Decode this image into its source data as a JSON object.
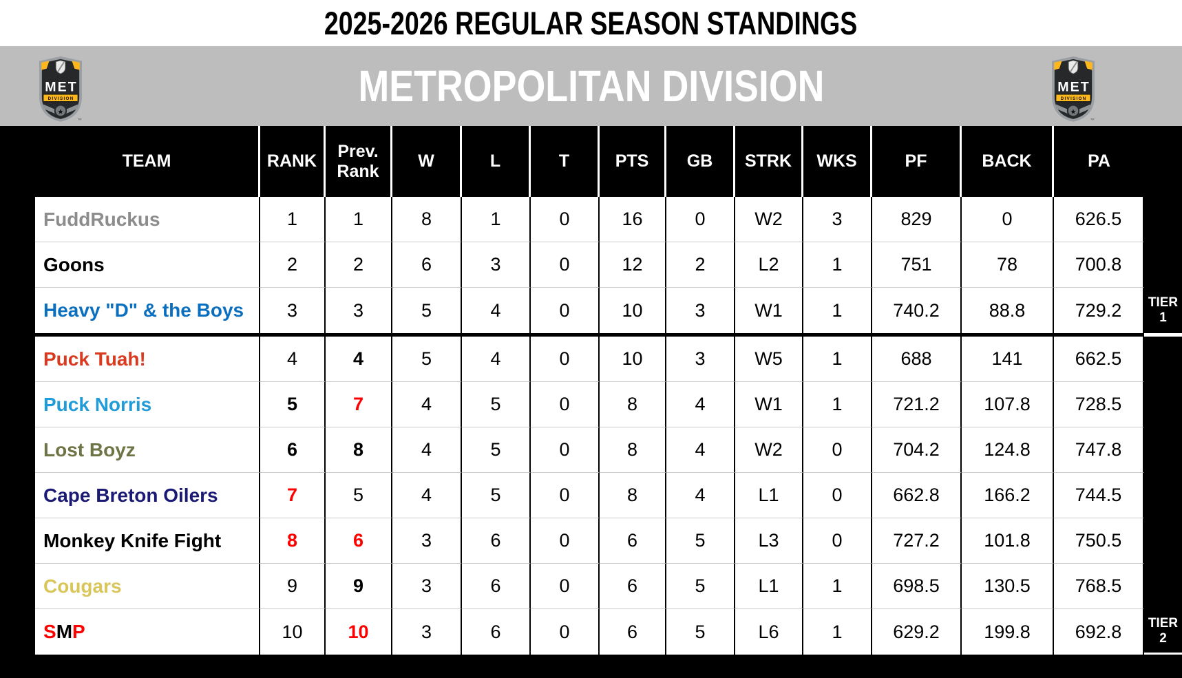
{
  "title": "2025-2026 REGULAR SEASON STANDINGS",
  "division": {
    "name": "METROPOLITAN DIVISION",
    "logo": {
      "abbr": "MET",
      "banner": "DIVISION",
      "star": "★",
      "tm": "™"
    }
  },
  "columns": {
    "team": "TEAM",
    "rank": "RANK",
    "prev1": "Prev.",
    "prev2": "Rank",
    "w": "W",
    "l": "L",
    "t": "T",
    "pts": "PTS",
    "gb": "GB",
    "strk": "STRK",
    "wks": "WKS",
    "pf": "PF",
    "back": "BACK",
    "pa": "PA"
  },
  "tier_labels": [
    {
      "line1": "TIER",
      "line2": "1"
    },
    {
      "line1": "TIER",
      "line2": "2"
    }
  ],
  "colors": {
    "band_gray": "#BDBDBD",
    "red_accent": "#FF0000",
    "logo_gold": "#FFB81C"
  },
  "teams": [
    {
      "name": "FuddRuckus",
      "color": "#8C8C8C",
      "rank": {
        "v": "1",
        "color": "#000000",
        "bold": false
      },
      "prev": {
        "v": "1",
        "color": "#000000",
        "bold": false
      },
      "w": "8",
      "l": "1",
      "t": "0",
      "pts": "16",
      "gb": "0",
      "strk": "W2",
      "wks": "3",
      "pf": "829",
      "back": "0",
      "pa": "626.5"
    },
    {
      "name": "Goons",
      "color": "#000000",
      "rank": {
        "v": "2",
        "color": "#000000",
        "bold": false
      },
      "prev": {
        "v": "2",
        "color": "#000000",
        "bold": false
      },
      "w": "6",
      "l": "3",
      "t": "0",
      "pts": "12",
      "gb": "2",
      "strk": "L2",
      "wks": "1",
      "pf": "751",
      "back": "78",
      "pa": "700.8"
    },
    {
      "name": "Heavy \"D\" & the Boys",
      "color": "#0B6FC0",
      "rank": {
        "v": "3",
        "color": "#000000",
        "bold": false
      },
      "prev": {
        "v": "3",
        "color": "#000000",
        "bold": false
      },
      "w": "5",
      "l": "4",
      "t": "0",
      "pts": "10",
      "gb": "3",
      "strk": "W1",
      "wks": "1",
      "pf": "740.2",
      "back": "88.8",
      "pa": "729.2"
    },
    {
      "name": "Puck Tuah!",
      "color": "#D8391F",
      "rank": {
        "v": "4",
        "color": "#000000",
        "bold": false
      },
      "prev": {
        "v": "4",
        "color": "#000000",
        "bold": true
      },
      "w": "5",
      "l": "4",
      "t": "0",
      "pts": "10",
      "gb": "3",
      "strk": "W5",
      "wks": "1",
      "pf": "688",
      "back": "141",
      "pa": "662.5"
    },
    {
      "name": "Puck Norris",
      "color": "#219CD8",
      "rank": {
        "v": "5",
        "color": "#000000",
        "bold": true
      },
      "prev": {
        "v": "7",
        "color": "#FF0000",
        "bold": true
      },
      "w": "4",
      "l": "5",
      "t": "0",
      "pts": "8",
      "gb": "4",
      "strk": "W1",
      "wks": "1",
      "pf": "721.2",
      "back": "107.8",
      "pa": "728.5"
    },
    {
      "name": "Lost Boyz",
      "color": "#6E7445",
      "rank": {
        "v": "6",
        "color": "#000000",
        "bold": true
      },
      "prev": {
        "v": "8",
        "color": "#000000",
        "bold": true
      },
      "w": "4",
      "l": "5",
      "t": "0",
      "pts": "8",
      "gb": "4",
      "strk": "W2",
      "wks": "0",
      "pf": "704.2",
      "back": "124.8",
      "pa": "747.8"
    },
    {
      "name": "Cape Breton Oilers",
      "color": "#1A1A75",
      "rank": {
        "v": "7",
        "color": "#FF0000",
        "bold": true
      },
      "prev": {
        "v": "5",
        "color": "#000000",
        "bold": false
      },
      "w": "4",
      "l": "5",
      "t": "0",
      "pts": "8",
      "gb": "4",
      "strk": "L1",
      "wks": "0",
      "pf": "662.8",
      "back": "166.2",
      "pa": "744.5"
    },
    {
      "name": "Monkey Knife Fight",
      "color": "#000000",
      "rank": {
        "v": "8",
        "color": "#FF0000",
        "bold": true
      },
      "prev": {
        "v": "6",
        "color": "#FF0000",
        "bold": true
      },
      "w": "3",
      "l": "6",
      "t": "0",
      "pts": "6",
      "gb": "5",
      "strk": "L3",
      "wks": "0",
      "pf": "727.2",
      "back": "101.8",
      "pa": "750.5"
    },
    {
      "name": "Cougars",
      "color": "#D9C65A",
      "rank": {
        "v": "9",
        "color": "#000000",
        "bold": false
      },
      "prev": {
        "v": "9",
        "color": "#000000",
        "bold": true
      },
      "w": "3",
      "l": "6",
      "t": "0",
      "pts": "6",
      "gb": "5",
      "strk": "L1",
      "wks": "1",
      "pf": "698.5",
      "back": "130.5",
      "pa": "768.5"
    },
    {
      "name": "SMP",
      "name_parts": [
        {
          "text": "S",
          "color": "#FF0000"
        },
        {
          "text": "M",
          "color": "#000000"
        },
        {
          "text": "P",
          "color": "#FF0000"
        }
      ],
      "rank": {
        "v": "10",
        "color": "#000000",
        "bold": false
      },
      "prev": {
        "v": "10",
        "color": "#FF0000",
        "bold": true
      },
      "w": "3",
      "l": "6",
      "t": "0",
      "pts": "6",
      "gb": "5",
      "strk": "L6",
      "wks": "1",
      "pf": "629.2",
      "back": "199.8",
      "pa": "692.8"
    }
  ]
}
